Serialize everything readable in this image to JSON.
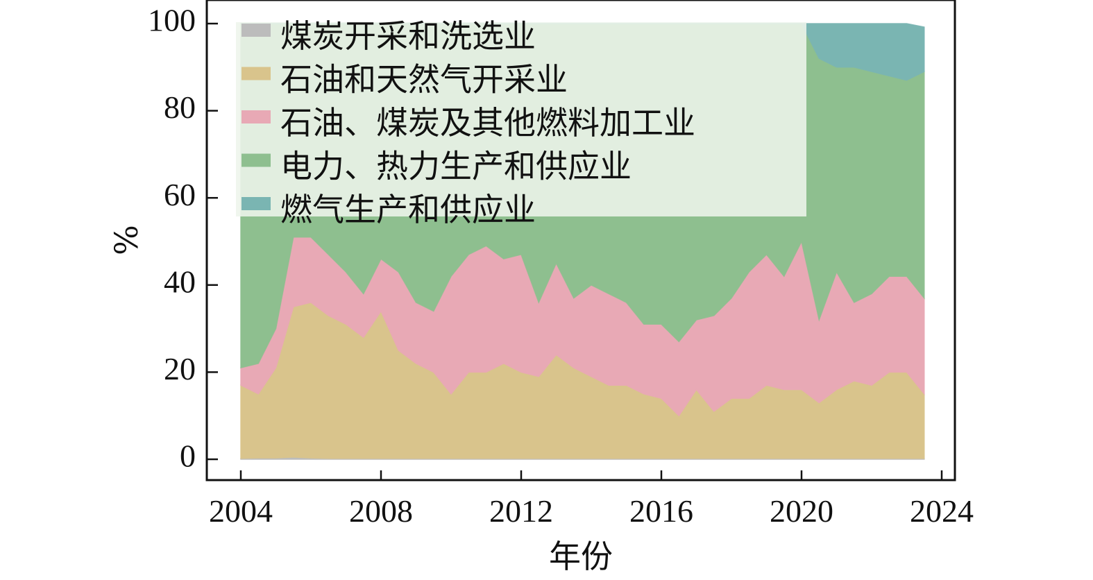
{
  "chart_data": {
    "type": "area",
    "stacked": true,
    "normalized_percent": true,
    "xlabel": "年份",
    "ylabel": "%",
    "xlim": [
      2004,
      2024
    ],
    "ylim": [
      0,
      100
    ],
    "x_ticks": [
      2004,
      2008,
      2012,
      2016,
      2020,
      2024
    ],
    "y_ticks": [
      0,
      20,
      40,
      60,
      80,
      100
    ],
    "legend_position": "top-left",
    "x": [
      2004.0,
      2004.5,
      2005.0,
      2005.5,
      2006.0,
      2006.5,
      2007.0,
      2007.5,
      2008.0,
      2008.5,
      2009.0,
      2009.5,
      2010.0,
      2010.5,
      2011.0,
      2011.5,
      2012.0,
      2012.5,
      2013.0,
      2013.5,
      2014.0,
      2014.5,
      2015.0,
      2015.5,
      2016.0,
      2016.5,
      2017.0,
      2017.5,
      2018.0,
      2018.5,
      2019.0,
      2019.5,
      2020.0,
      2020.5,
      2021.0,
      2021.5,
      2022.0,
      2022.5,
      2023.0,
      2023.5
    ],
    "series": [
      {
        "name": "煤炭开采和洗选业",
        "color": "#bcbcbc",
        "values": [
          0.2,
          0.3,
          0.3,
          0.5,
          0.3,
          0.2,
          0.2,
          0.2,
          0.2,
          0.2,
          0.2,
          0.2,
          0.2,
          0.2,
          0.2,
          0.2,
          0.2,
          0.2,
          0.2,
          0.2,
          0.2,
          0.2,
          0.2,
          0.2,
          0.2,
          0.2,
          0.2,
          0.2,
          0.2,
          0.2,
          0.2,
          0.2,
          0.2,
          0.2,
          0.2,
          0.2,
          0.2,
          0.2,
          0.2,
          0.2
        ]
      },
      {
        "name": "石油和天然气开采业",
        "color": "#d9c48c",
        "values": [
          16.8,
          14.7,
          20.7,
          34.5,
          35.7,
          32.8,
          30.8,
          27.8,
          33.8,
          24.8,
          21.8,
          19.8,
          14.8,
          19.8,
          19.8,
          21.8,
          19.8,
          18.8,
          23.8,
          20.8,
          18.8,
          16.8,
          16.8,
          14.8,
          13.8,
          9.8,
          15.8,
          10.8,
          13.8,
          13.8,
          16.8,
          15.8,
          15.8,
          12.8,
          15.8,
          17.8,
          16.8,
          19.8,
          19.8,
          14.8
        ]
      },
      {
        "name": "石油、煤炭及其他燃料加工业",
        "color": "#e8a9b5",
        "values": [
          4.0,
          7.0,
          9.0,
          16.0,
          15.0,
          14.0,
          12.0,
          10.0,
          12.0,
          18.0,
          14.0,
          14.0,
          27.0,
          27.0,
          29.0,
          24.0,
          27.0,
          17.0,
          21.0,
          16.0,
          21.0,
          21.0,
          19.0,
          16.0,
          17.0,
          17.0,
          16.0,
          22.0,
          23.0,
          29.0,
          30.0,
          26.0,
          34.0,
          19.0,
          27.0,
          18.0,
          21.0,
          22.0,
          22.0,
          22.0
        ]
      },
      {
        "name": "电力、热力生产和供应业",
        "color": "#8ebf8f",
        "values": [
          79.0,
          78.0,
          70.0,
          49.0,
          49.0,
          53.0,
          57.0,
          62.0,
          54.0,
          57.0,
          64.0,
          66.0,
          58.0,
          53.0,
          51.0,
          54.0,
          53.0,
          64.0,
          55.0,
          63.0,
          60.0,
          62.0,
          64.0,
          69.0,
          69.0,
          73.0,
          68.0,
          67.0,
          63.0,
          57.0,
          53.0,
          58.0,
          50.0,
          60.0,
          47.0,
          54.0,
          51.0,
          46.0,
          45.0,
          52.0
        ]
      },
      {
        "name": "燃气生产和供应业",
        "color": "#7ab5b2",
        "values": [
          0.0,
          0.0,
          0.0,
          0.0,
          0.0,
          0.0,
          0.0,
          0.0,
          0.0,
          0.0,
          0.0,
          0.0,
          0.0,
          0.0,
          0.0,
          0.0,
          0.0,
          0.0,
          0.0,
          0.0,
          0.0,
          0.0,
          0.0,
          0.0,
          0.0,
          0.0,
          0.0,
          0.0,
          0.0,
          0.0,
          0.0,
          0.0,
          0.0,
          8.0,
          10.0,
          10.0,
          11.0,
          12.0,
          13.0,
          10.2
        ]
      }
    ]
  }
}
